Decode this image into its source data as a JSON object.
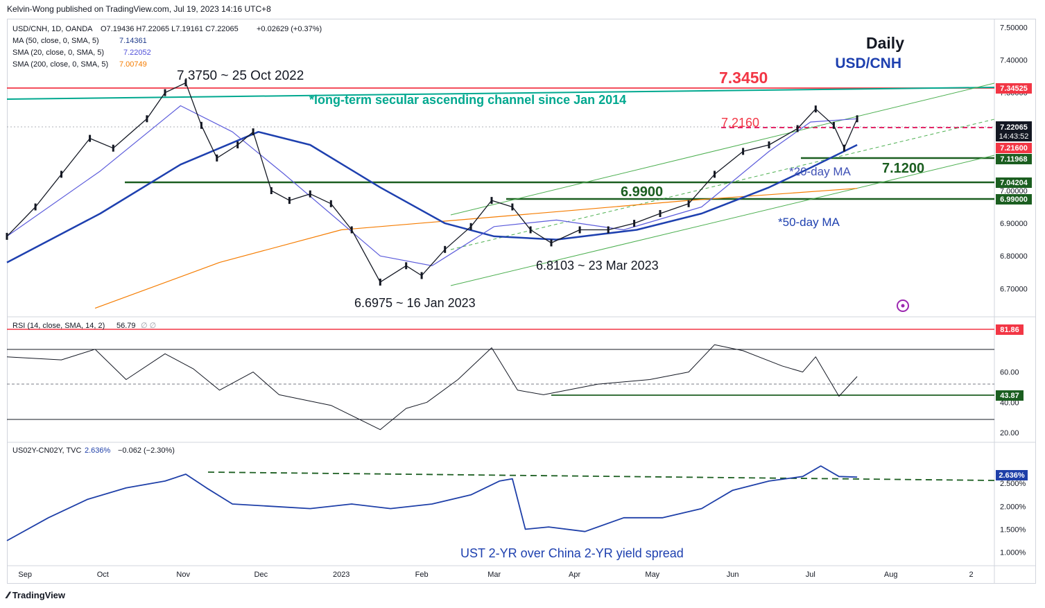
{
  "header": {
    "published": "Kelvin-Wong published on TradingView.com, Jul 19, 2023 14:16 UTC+8"
  },
  "legend": {
    "main": {
      "symbol": "USD/CNH, 1D, OANDA",
      "ohlc": "O7.19436 H7.22065 L7.19161 C7.22065",
      "change": "+0.02629 (+0.37%)"
    },
    "ma50": {
      "label": "MA (50, close, 0, SMA, 5)",
      "value": "7.14361",
      "color": "#1e3a8a"
    },
    "sma20": {
      "label": "SMA (20, close, 0, SMA, 5)",
      "value": "7.22052",
      "color": "#4f4fd9"
    },
    "sma200": {
      "label": "SMA (200, close, 0, SMA, 5)",
      "value": "7.00749",
      "color": "#f57c00"
    },
    "rsi": {
      "label": "RSI (14, close, SMA, 14, 2)",
      "value": "56.79",
      "extra": "∅ ∅"
    },
    "spread": {
      "label": "US02Y-CN02Y, TVC",
      "value": "2.636%",
      "change": "−0.062 (−2.30%)"
    }
  },
  "annotations": {
    "title_period": "Daily",
    "title_pair": "USD/CNH",
    "level_7345": "7.3450",
    "channel_note": "*long-term secular ascending channel since Jan 2014",
    "high_label": "7.3750 ~ 25 Oct 2022",
    "level_7216": "7.2160",
    "level_699": "6.9900",
    "level_712": "7.1200",
    "ma20_note": "*20-day MA",
    "ma50_note": "*50-day MA",
    "mid_low_label": "6.8103 ~ 23 Mar 2023",
    "low_label": "6.6975 ~ 16 Jan 2023",
    "spread_note": "UST 2-YR over China 2-YR yield spread"
  },
  "price_badges": {
    "b7345": "7.34525",
    "b7220": "7.22065",
    "countdown": "14:43:52",
    "b7216": "7.21600",
    "b7119": "7.11968",
    "b7042": "7.04204",
    "b6990": "6.99000",
    "rsi_hi": "81.86",
    "rsi_lo": "43.87",
    "spread": "2.636%"
  },
  "colors": {
    "up": "#131722",
    "down": "#131722",
    "accent_red": "#f23645",
    "accent_green": "#1b5e20",
    "teal": "#00a88f",
    "ma50": "#1e40af",
    "ma20": "#5b5bdb",
    "sma200": "#f57c00",
    "spread_line": "#1e3fa8"
  },
  "chart_data": [
    {
      "type": "line",
      "title": "USD/CNH, 1D, OANDA",
      "y_axis_ticks": [
        "7.50000",
        "7.40000",
        "7.30000",
        "7.20000",
        "7.10000",
        "7.00000",
        "6.90000",
        "6.80000",
        "6.70000"
      ],
      "ylim": [
        6.62,
        7.52
      ],
      "x_axis_labels": [
        "Sep",
        "Oct",
        "Nov",
        "Dec",
        "2023",
        "Feb",
        "Mar",
        "Apr",
        "May",
        "Jun",
        "Jul",
        "Aug",
        "2"
      ],
      "series": [
        {
          "name": "USD/CNH",
          "x": [
            "2022-08-25",
            "2022-09-05",
            "2022-09-15",
            "2022-09-26",
            "2022-10-05",
            "2022-10-18",
            "2022-10-25",
            "2022-11-02",
            "2022-11-08",
            "2022-11-14",
            "2022-11-22",
            "2022-11-28",
            "2022-12-05",
            "2022-12-12",
            "2022-12-20",
            "2022-12-28",
            "2023-01-05",
            "2023-01-16",
            "2023-01-26",
            "2023-02-01",
            "2023-02-10",
            "2023-02-20",
            "2023-02-28",
            "2023-03-08",
            "2023-03-15",
            "2023-03-23",
            "2023-04-03",
            "2023-04-14",
            "2023-04-24",
            "2023-05-04",
            "2023-05-15",
            "2023-05-25",
            "2023-06-05",
            "2023-06-15",
            "2023-06-26",
            "2023-07-03",
            "2023-07-10",
            "2023-07-14",
            "2023-07-19"
          ],
          "y": [
            6.86,
            6.95,
            7.05,
            7.16,
            7.13,
            7.22,
            7.3,
            7.33,
            7.2,
            7.1,
            7.14,
            7.18,
            7.0,
            6.97,
            6.99,
            6.96,
            6.88,
            6.72,
            6.77,
            6.74,
            6.82,
            6.89,
            6.97,
            6.95,
            6.88,
            6.84,
            6.88,
            6.88,
            6.9,
            6.93,
            6.96,
            7.05,
            7.12,
            7.14,
            7.19,
            7.25,
            7.2,
            7.13,
            7.22
          ]
        },
        {
          "name": "MA (50)",
          "x": [
            "2022-08-25",
            "2022-09-30",
            "2022-10-31",
            "2022-11-30",
            "2022-12-20",
            "2023-01-16",
            "2023-02-10",
            "2023-03-01",
            "2023-03-25",
            "2023-04-25",
            "2023-05-20",
            "2023-06-15",
            "2023-07-01",
            "2023-07-19"
          ],
          "y": [
            6.78,
            6.93,
            7.08,
            7.18,
            7.14,
            7.01,
            6.9,
            6.86,
            6.85,
            6.88,
            6.93,
            7.01,
            7.07,
            7.14
          ]
        },
        {
          "name": "SMA (20)",
          "x": [
            "2022-08-25",
            "2022-09-30",
            "2022-10-31",
            "2022-11-20",
            "2022-12-10",
            "2023-01-16",
            "2023-02-05",
            "2023-03-01",
            "2023-03-25",
            "2023-04-20",
            "2023-05-20",
            "2023-06-15",
            "2023-07-01",
            "2023-07-19"
          ],
          "y": [
            6.86,
            7.06,
            7.26,
            7.18,
            7.05,
            6.8,
            6.77,
            6.89,
            6.91,
            6.88,
            6.95,
            7.12,
            7.21,
            7.22
          ]
        },
        {
          "name": "SMA (200)",
          "x": [
            "2022-09-28",
            "2022-11-15",
            "2023-01-01",
            "2023-02-15",
            "2023-04-01",
            "2023-05-15",
            "2023-07-19"
          ],
          "y": [
            6.64,
            6.78,
            6.88,
            6.91,
            6.94,
            6.97,
            7.007
          ]
        }
      ]
    },
    {
      "type": "line",
      "title": "RSI (14, close, SMA, 14, 2)",
      "y_axis_ticks": [
        "60.00",
        "40.00",
        "20.00"
      ],
      "ylim": [
        15,
        95
      ],
      "series": [
        {
          "name": "RSI",
          "x": [
            "2022-08-25",
            "2022-09-15",
            "2022-09-28",
            "2022-10-10",
            "2022-10-25",
            "2022-11-05",
            "2022-11-15",
            "2022-11-28",
            "2022-12-08",
            "2022-12-28",
            "2023-01-16",
            "2023-01-26",
            "2023-02-03",
            "2023-02-15",
            "2023-02-28",
            "2023-03-10",
            "2023-03-20",
            "2023-04-10",
            "2023-04-30",
            "2023-05-15",
            "2023-05-25",
            "2023-06-05",
            "2023-06-20",
            "2023-06-28",
            "2023-07-03",
            "2023-07-12",
            "2023-07-19"
          ],
          "y": [
            70,
            68,
            75,
            55,
            72,
            62,
            48,
            60,
            45,
            38,
            22,
            36,
            40,
            55,
            76,
            48,
            45,
            52,
            55,
            60,
            78,
            74,
            64,
            60,
            70,
            44,
            57
          ]
        }
      ]
    },
    {
      "type": "line",
      "title": "US02Y-CN02Y, TVC",
      "y_axis_ticks": [
        "2.500%",
        "2.000%",
        "1.500%",
        "1.000%"
      ],
      "ylim": [
        0.75,
        3.35
      ],
      "series": [
        {
          "name": "US02Y-CN02Y",
          "x": [
            "2022-08-25",
            "2022-09-10",
            "2022-09-25",
            "2022-10-10",
            "2022-10-25",
            "2022-11-02",
            "2022-11-10",
            "2022-11-20",
            "2022-12-05",
            "2022-12-20",
            "2023-01-05",
            "2023-01-20",
            "2023-02-05",
            "2023-02-20",
            "2023-03-03",
            "2023-03-08",
            "2023-03-13",
            "2023-03-22",
            "2023-04-05",
            "2023-04-20",
            "2023-05-05",
            "2023-05-20",
            "2023-06-01",
            "2023-06-15",
            "2023-06-28",
            "2023-07-05",
            "2023-07-12",
            "2023-07-19"
          ],
          "y": [
            1.25,
            1.75,
            2.15,
            2.4,
            2.55,
            2.7,
            2.4,
            2.05,
            2.0,
            1.95,
            2.05,
            1.95,
            2.05,
            2.25,
            2.55,
            2.6,
            1.5,
            1.55,
            1.45,
            1.75,
            1.75,
            1.95,
            2.35,
            2.55,
            2.65,
            2.88,
            2.65,
            2.636
          ]
        }
      ]
    }
  ]
}
